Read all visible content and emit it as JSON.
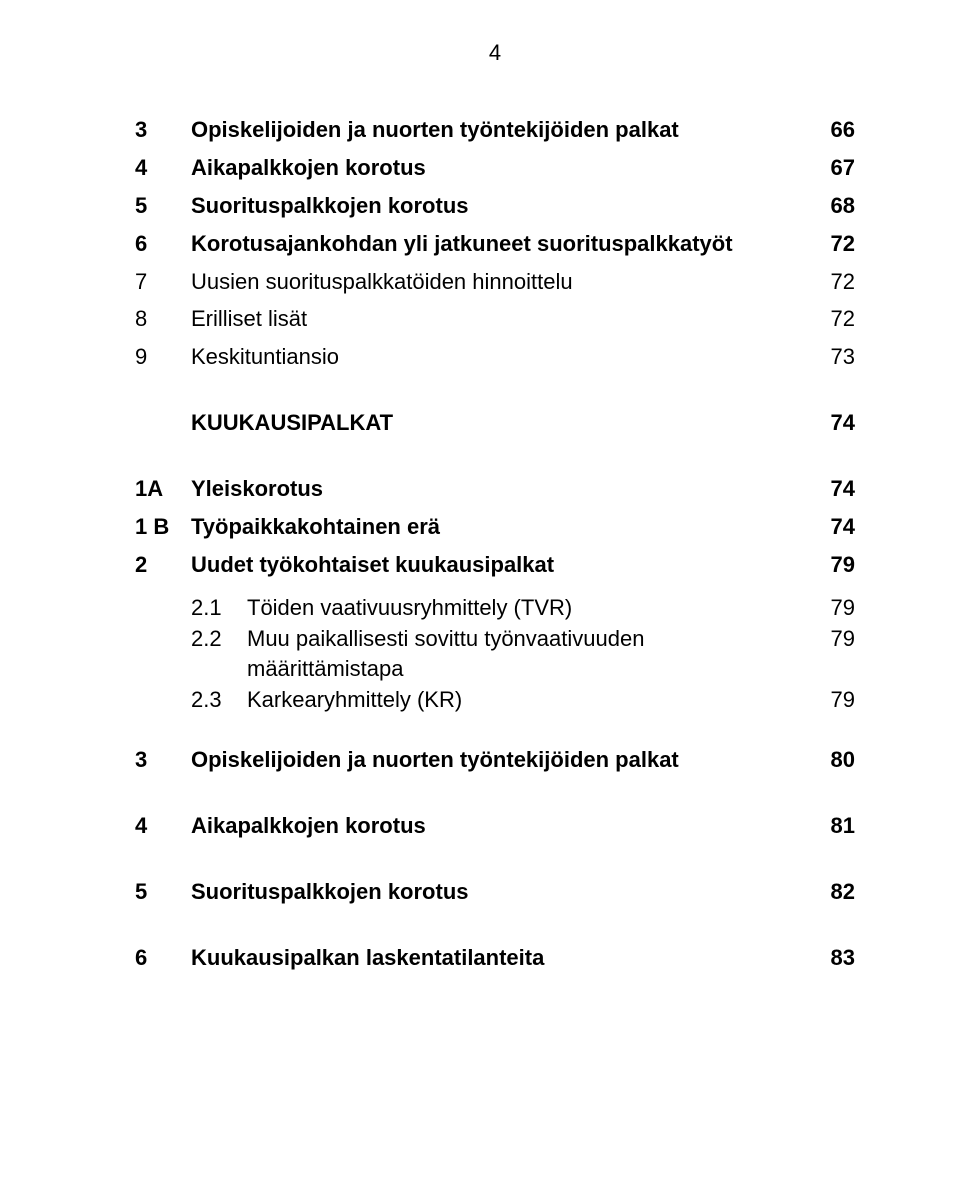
{
  "page_number": "4",
  "colors": {
    "background": "#ffffff",
    "text": "#000000"
  },
  "typography": {
    "body_fontsize_pt": 17,
    "font_family": "Arial"
  },
  "toc": [
    {
      "num": "3",
      "label": "Opiskelijoiden ja nuorten työntekijöiden palkat",
      "page": "66",
      "bold": true
    },
    {
      "num": "4",
      "label": "Aikapalkkojen korotus",
      "page": "67",
      "bold": true
    },
    {
      "num": "5",
      "label": "Suorituspalkkojen korotus",
      "page": "68",
      "bold": true
    },
    {
      "num": "6",
      "label": "Korotusajankohdan yli jatkuneet suorituspalkkatyöt",
      "page": "72",
      "bold": true
    },
    {
      "num": "7",
      "label": "Uusien suorituspalkkatöiden hinnoittelu",
      "page": "72",
      "bold": false
    },
    {
      "num": "8",
      "label": "Erilliset lisät",
      "page": "72",
      "bold": false
    },
    {
      "num": "9",
      "label": "Keskituntiansio",
      "page": "73",
      "bold": false
    },
    {
      "gap": "section"
    },
    {
      "num": "",
      "label": "KUUKAUSIPALKAT",
      "page": "74",
      "bold": true
    },
    {
      "gap": "section"
    },
    {
      "num": "1A",
      "label": "Yleiskorotus",
      "page": "74",
      "bold": true
    },
    {
      "num": "1 B",
      "label": "Työpaikkakohtainen erä",
      "page": "74",
      "bold": true
    },
    {
      "num": "2",
      "label": "Uudet työkohtaiset kuukausipalkat",
      "page": "79",
      "bold": true
    },
    {
      "gap": "sub"
    },
    {
      "sub": true,
      "num": "2.1",
      "label": "Töiden vaativuusryhmittely (TVR)",
      "page": "79"
    },
    {
      "sub": true,
      "num": "2.2",
      "label": "Muu paikallisesti sovittu työnvaativuuden määrittämistapa",
      "page": "79"
    },
    {
      "sub": true,
      "num": "2.3",
      "label": "Karkearyhmittely (KR)",
      "page": "79"
    },
    {
      "gap": "section"
    },
    {
      "num": "3",
      "label": "Opiskelijoiden ja nuorten työntekijöiden palkat",
      "page": "80",
      "bold": true
    },
    {
      "gap": "section"
    },
    {
      "num": "4",
      "label": "Aikapalkkojen korotus",
      "page": "81",
      "bold": true
    },
    {
      "gap": "section"
    },
    {
      "num": "5",
      "label": "Suorituspalkkojen korotus",
      "page": "82",
      "bold": true
    },
    {
      "gap": "section"
    },
    {
      "num": "6",
      "label": "Kuukausipalkan laskentatilanteita",
      "page": "83",
      "bold": true
    }
  ]
}
